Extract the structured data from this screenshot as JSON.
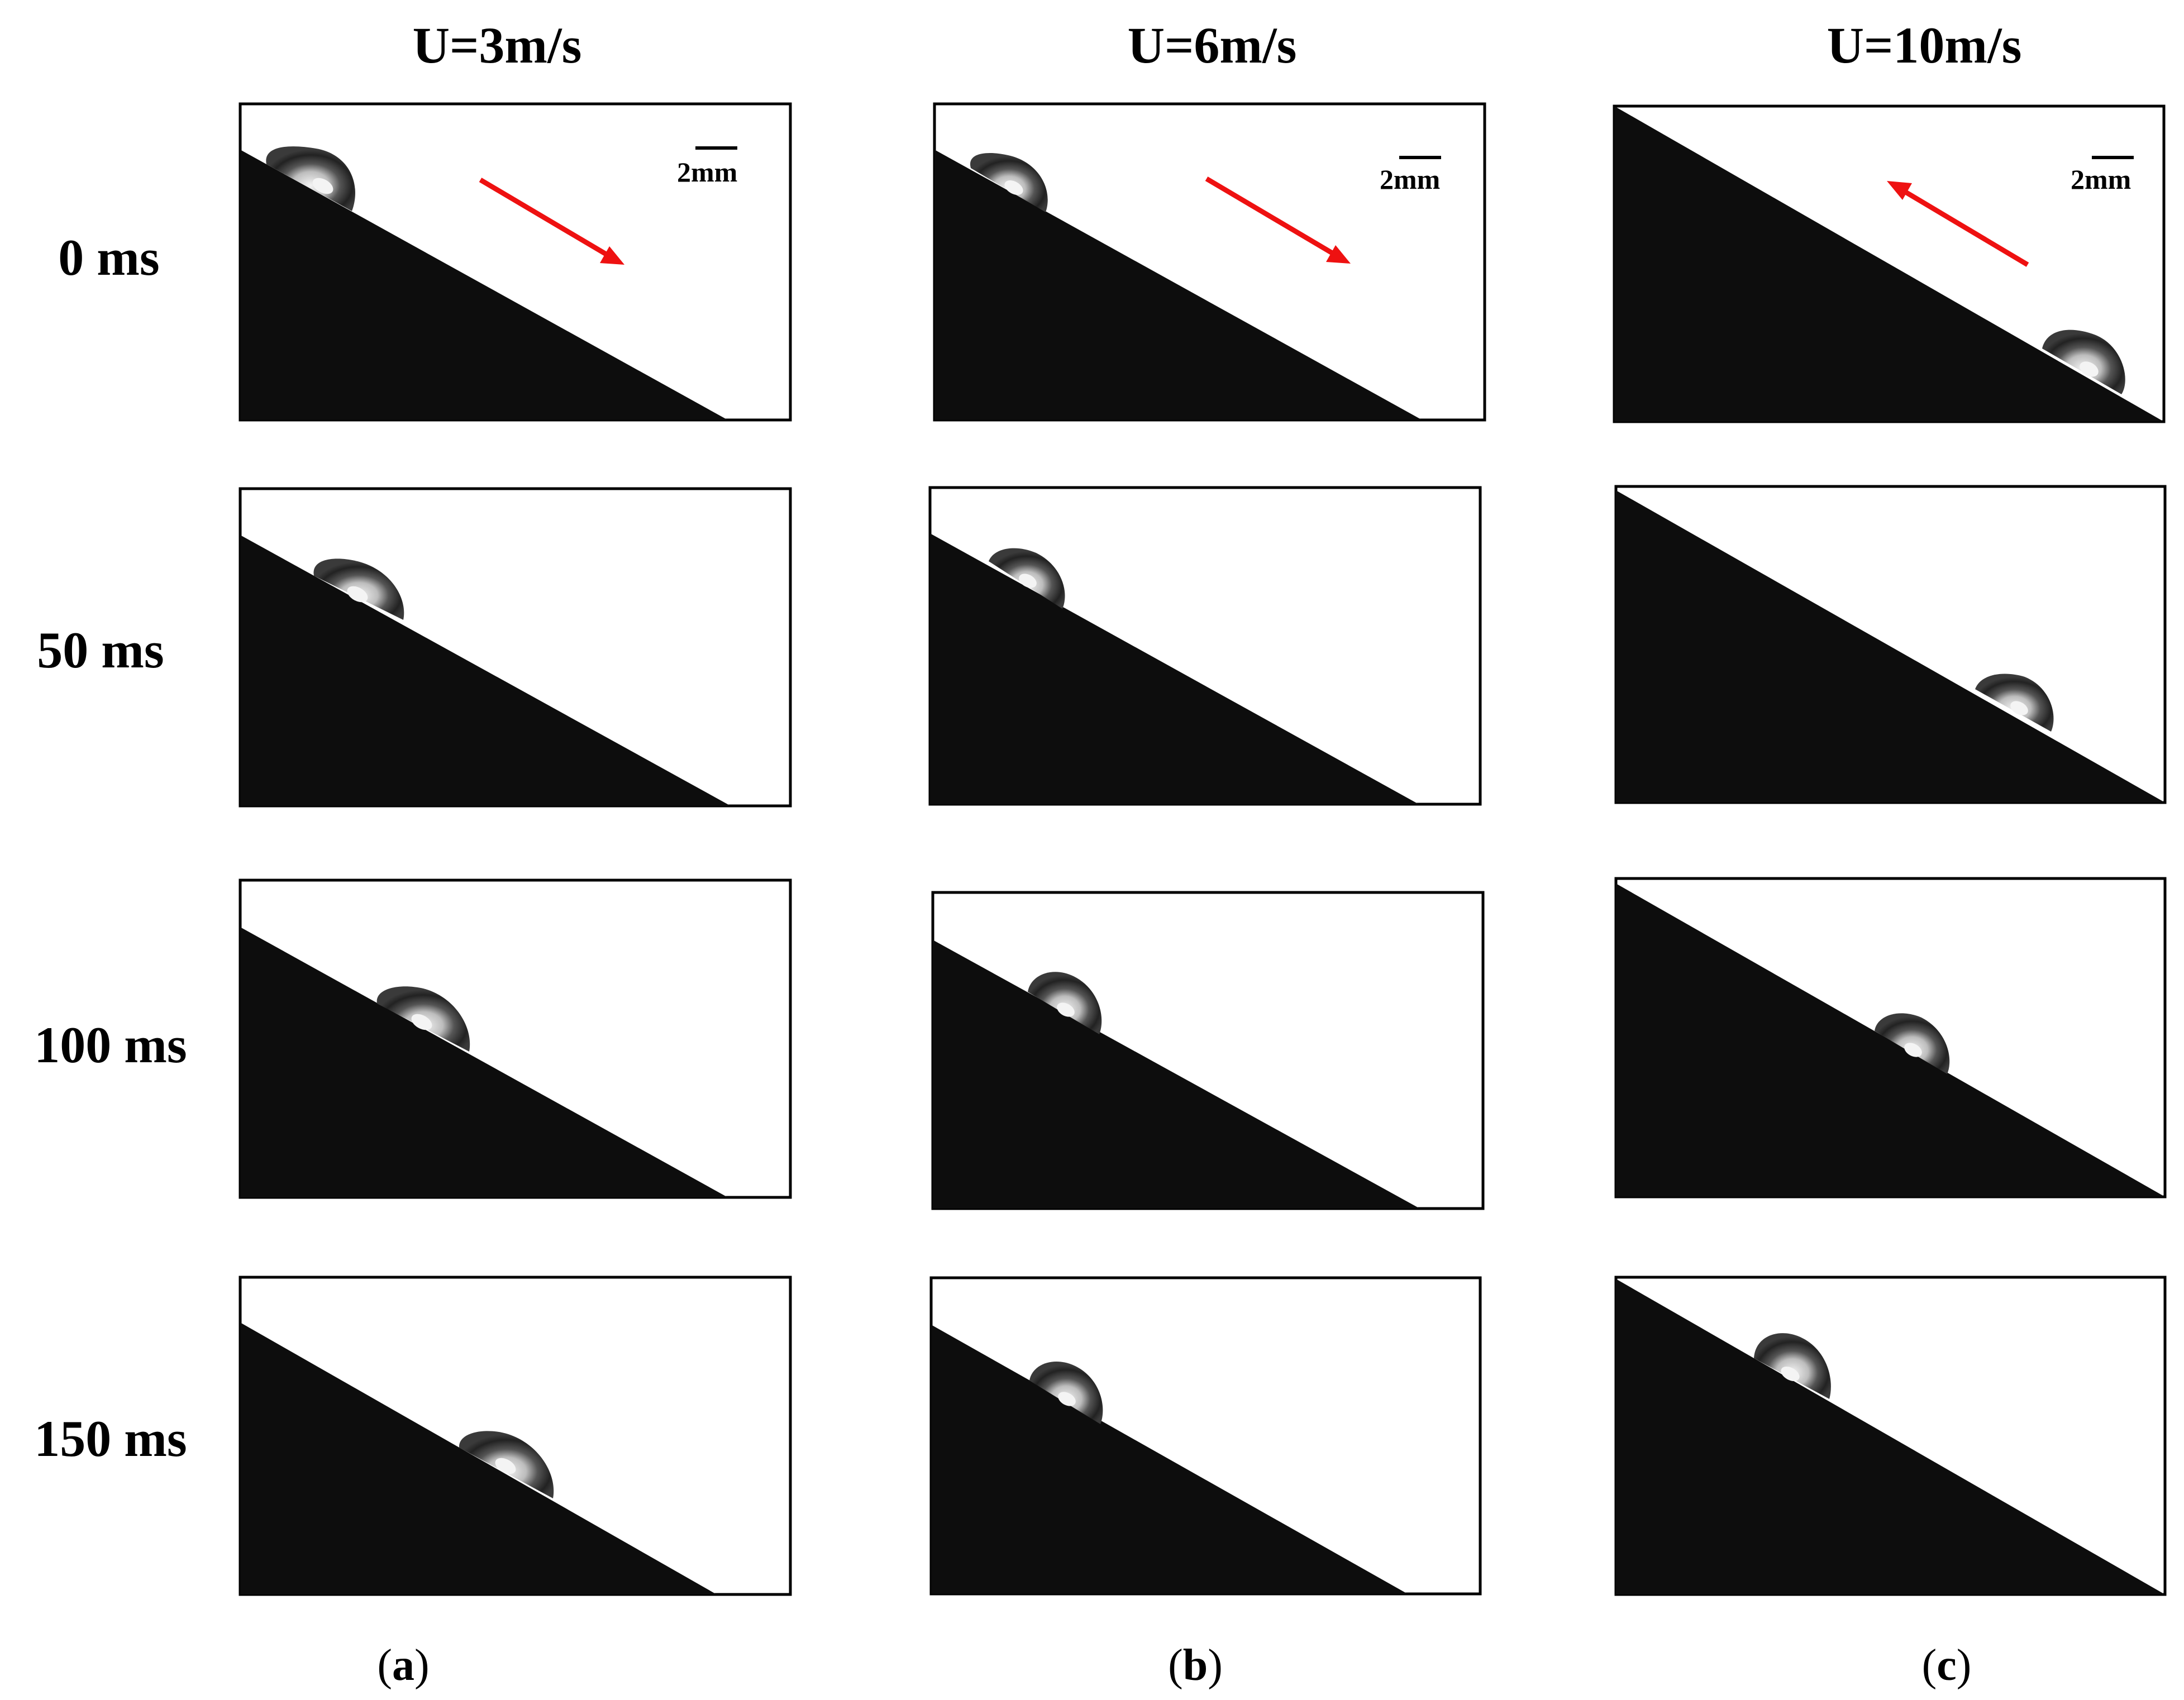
{
  "figure": {
    "columns": [
      {
        "title": "U=3m/s",
        "label_open": "(",
        "label_letter": "a",
        "label_close": ")"
      },
      {
        "title": "U=6m/s",
        "label_open": "(",
        "label_letter": "b",
        "label_close": ")"
      },
      {
        "title": "U=10m/s",
        "label_open": "(",
        "label_letter": "c",
        "label_close": ")"
      }
    ],
    "rows": [
      {
        "label": "0 ms"
      },
      {
        "label": "50 ms"
      },
      {
        "label": "100 ms"
      },
      {
        "label": "150 ms"
      }
    ],
    "scale_bar": {
      "text": "2mm"
    },
    "colors": {
      "arrow": "#ee1111",
      "solid_surface": "#0d0d0d",
      "frame": "#000000",
      "background": "#ffffff"
    },
    "motion_arrows": [
      {
        "column": 0,
        "direction": "down-slope"
      },
      {
        "column": 1,
        "direction": "down-slope"
      },
      {
        "column": 2,
        "direction": "up-slope"
      }
    ]
  }
}
